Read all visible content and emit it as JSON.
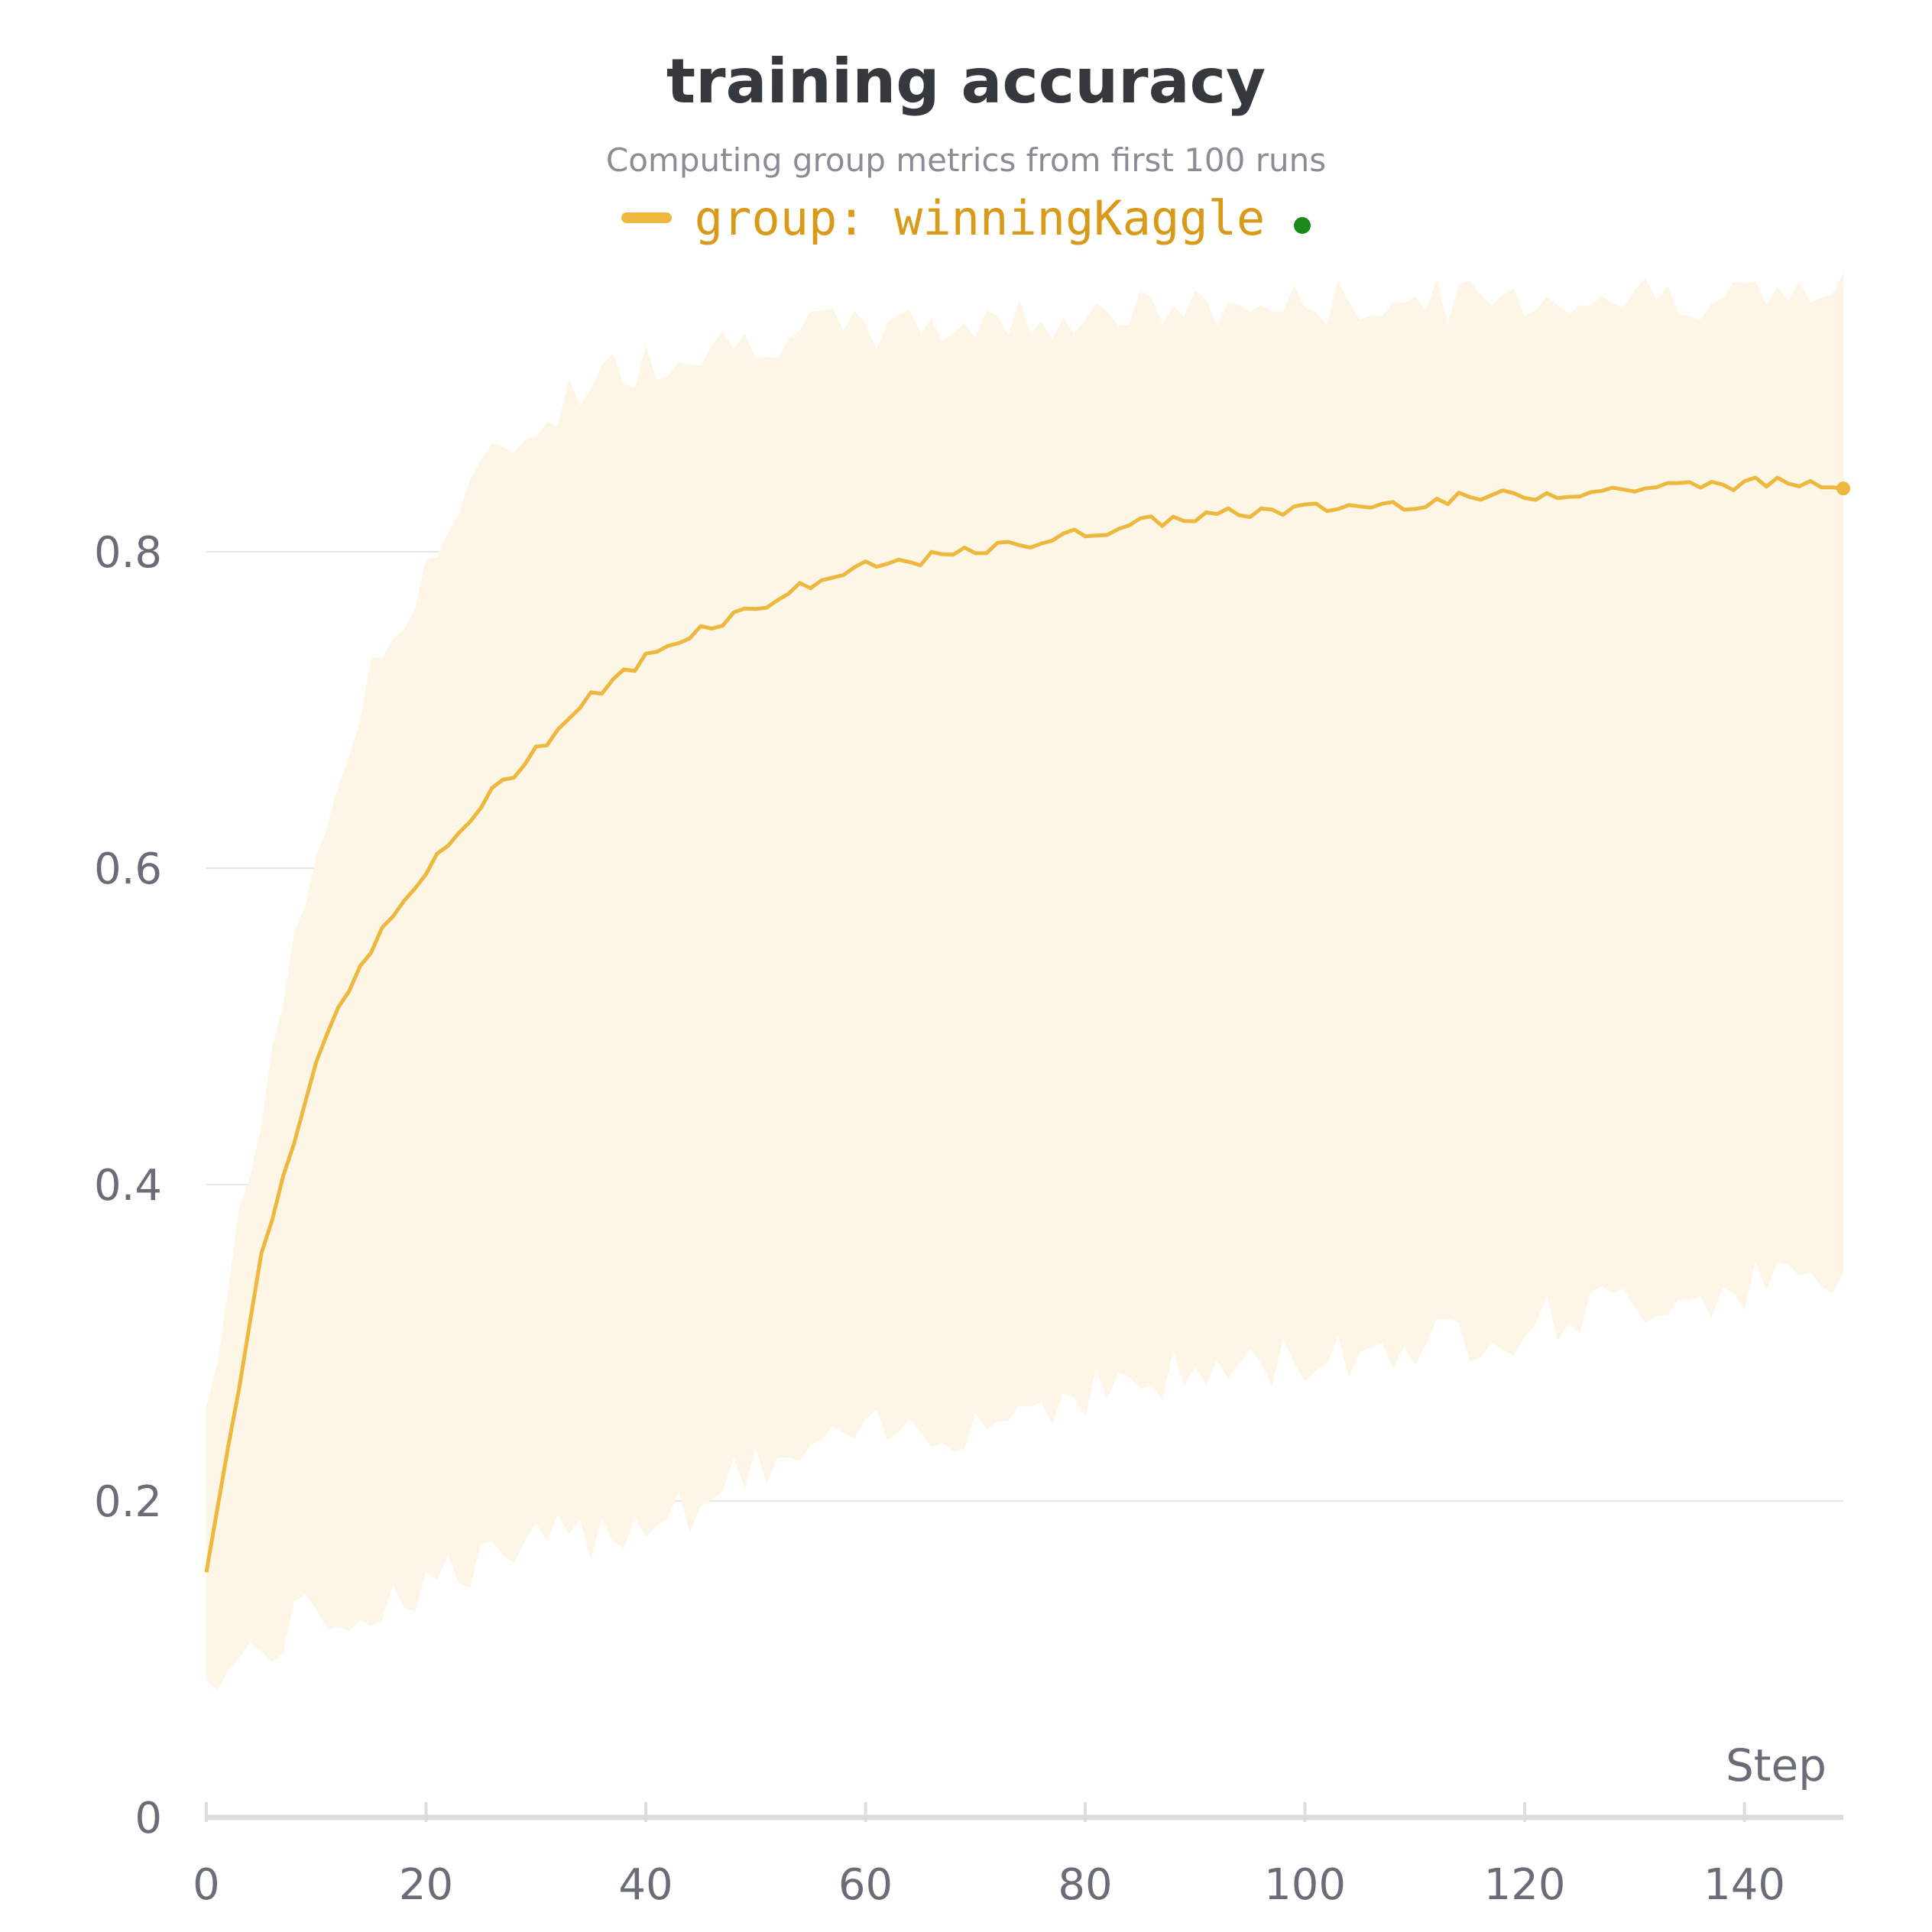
{
  "chart_data": {
    "type": "line",
    "title": "training accuracy",
    "subtitle": "Computing group metrics from first 100 runs",
    "xlabel": "Step",
    "ylabel": "",
    "xlim": [
      0,
      149
    ],
    "ylim": [
      0,
      0.95
    ],
    "x_ticks": [
      0,
      20,
      40,
      60,
      80,
      100,
      120,
      140
    ],
    "y_ticks": [
      0,
      0.2,
      0.4,
      0.6,
      0.8
    ],
    "grid": true,
    "legend_position": "top-center",
    "colors": {
      "line": "#edb83d",
      "band": "#fdf6e7",
      "legend_text": "#d99a1a",
      "status_dot": "#1b8a1b",
      "grid": "#e8e8e8",
      "axis": "#dddddd"
    },
    "series": [
      {
        "name": "group: winningKaggle",
        "x_start": 0,
        "x_step": 5,
        "mean": [
          0.155,
          0.355,
          0.48,
          0.55,
          0.597,
          0.64,
          0.675,
          0.708,
          0.733,
          0.752,
          0.765,
          0.78,
          0.79,
          0.795,
          0.8,
          0.806,
          0.812,
          0.818,
          0.822,
          0.825,
          0.827,
          0.829,
          0.831,
          0.834,
          0.836,
          0.838,
          0.84,
          0.842,
          0.843,
          0.844
        ],
        "upper": [
          0.26,
          0.45,
          0.61,
          0.72,
          0.79,
          0.85,
          0.88,
          0.91,
          0.92,
          0.93,
          0.935,
          0.94,
          0.94,
          0.942,
          0.945,
          0.948,
          0.95,
          0.952,
          0.953,
          0.955,
          0.956,
          0.957,
          0.958,
          0.959,
          0.96,
          0.961,
          0.962,
          0.962,
          0.962,
          0.962
        ],
        "lower": [
          0.085,
          0.105,
          0.13,
          0.13,
          0.15,
          0.16,
          0.17,
          0.18,
          0.19,
          0.2,
          0.22,
          0.23,
          0.24,
          0.245,
          0.25,
          0.26,
          0.27,
          0.275,
          0.28,
          0.285,
          0.29,
          0.295,
          0.3,
          0.305,
          0.31,
          0.32,
          0.325,
          0.33,
          0.335,
          0.34
        ]
      }
    ]
  }
}
